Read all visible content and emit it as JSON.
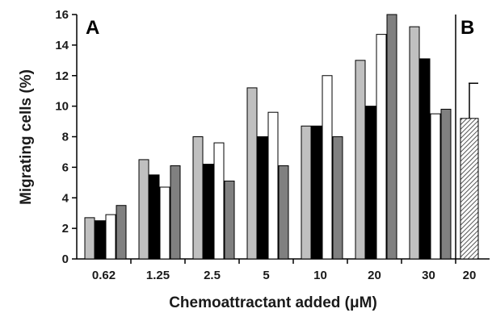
{
  "chart_data": {
    "type": "bar",
    "xlabel": "Chemoattractant added (μM)",
    "ylabel": "Migrating cells (%)",
    "ylim": [
      0,
      16
    ],
    "yticks": [
      0,
      2,
      4,
      6,
      8,
      10,
      12,
      14,
      16
    ],
    "grid": false,
    "colors": [
      "#c0c0c0",
      "#000000",
      "#ffffff",
      "#808080"
    ],
    "panels": [
      {
        "label": "A",
        "categories": [
          "0.62",
          "1.25",
          "2.5",
          "5",
          "10",
          "20",
          "30"
        ],
        "series": [
          {
            "values": [
              2.7,
              6.5,
              8.0,
              11.2,
              8.7,
              13.0,
              15.2
            ]
          },
          {
            "values": [
              2.5,
              5.5,
              6.2,
              8.0,
              8.7,
              10.0,
              13.1
            ]
          },
          {
            "values": [
              2.9,
              4.7,
              7.6,
              9.6,
              12.0,
              14.7,
              9.5
            ]
          },
          {
            "values": [
              3.5,
              6.1,
              5.1,
              6.1,
              8.0,
              16.0,
              9.8
            ]
          }
        ]
      },
      {
        "label": "B",
        "categories": [
          "20"
        ],
        "series": [
          {
            "values": [
              9.2
            ],
            "error": 2.3,
            "fill": "hatched"
          }
        ]
      }
    ]
  }
}
